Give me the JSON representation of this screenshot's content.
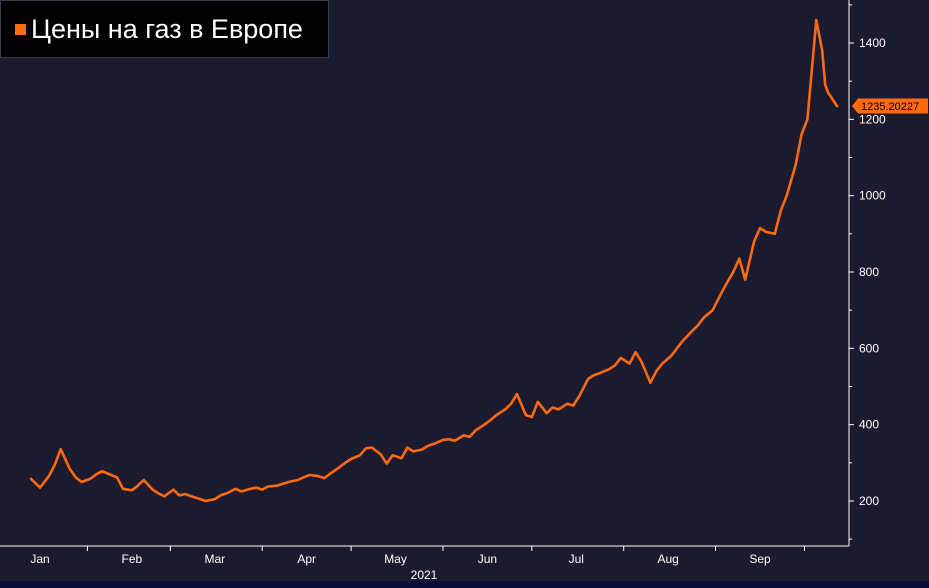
{
  "title": "Цены на газ в Европе",
  "colors": {
    "background": "#1b1a2e",
    "line": "#ff6a10",
    "title_box": "#000000",
    "text": "#ffffff",
    "axis": "#ffffff"
  },
  "chart_data": {
    "type": "line",
    "title": "Цены на газ в Европе",
    "year_label": "2021",
    "x_tick_labels": [
      "Jan",
      "Feb",
      "Mar",
      "Apr",
      "May",
      "Jun",
      "Jul",
      "Aug",
      "Sep"
    ],
    "y_ticks": [
      200,
      400,
      600,
      800,
      1000,
      1200,
      1400
    ],
    "ylim": [
      90,
      1520
    ],
    "y_axis_side": "right",
    "grid": false,
    "last_value_label": "1235.20227",
    "series": [
      {
        "x": [
          "2020-12-29",
          "2021-01-01",
          "2021-01-04",
          "2021-01-06",
          "2021-01-08",
          "2021-01-11",
          "2021-01-13",
          "2021-01-15",
          "2021-01-18",
          "2021-01-20",
          "2021-01-22",
          "2021-01-25",
          "2021-01-27",
          "2021-01-29",
          "2021-02-01",
          "2021-02-03",
          "2021-02-05",
          "2021-02-08",
          "2021-02-10",
          "2021-02-12",
          "2021-02-15",
          "2021-02-17",
          "2021-02-19",
          "2021-02-22",
          "2021-02-24",
          "2021-02-26",
          "2021-03-01",
          "2021-03-03",
          "2021-03-05",
          "2021-03-08",
          "2021-03-10",
          "2021-03-12",
          "2021-03-15",
          "2021-03-17",
          "2021-03-19",
          "2021-03-22",
          "2021-03-24",
          "2021-03-26",
          "2021-03-29",
          "2021-03-31",
          "2021-04-02",
          "2021-04-05",
          "2021-04-07",
          "2021-04-09",
          "2021-04-12",
          "2021-04-14",
          "2021-04-16",
          "2021-04-19",
          "2021-04-21",
          "2021-04-23",
          "2021-04-26",
          "2021-04-28",
          "2021-04-30",
          "2021-05-03",
          "2021-05-05",
          "2021-05-07",
          "2021-05-10",
          "2021-05-12",
          "2021-05-14",
          "2021-05-17",
          "2021-05-19",
          "2021-05-21",
          "2021-05-24",
          "2021-05-26",
          "2021-05-28",
          "2021-05-31",
          "2021-06-02",
          "2021-06-04",
          "2021-06-07",
          "2021-06-09",
          "2021-06-11",
          "2021-06-14",
          "2021-06-16",
          "2021-06-18",
          "2021-06-21",
          "2021-06-23",
          "2021-06-25",
          "2021-06-28",
          "2021-06-30",
          "2021-07-02",
          "2021-07-05",
          "2021-07-07",
          "2021-07-09",
          "2021-07-12",
          "2021-07-14",
          "2021-07-16",
          "2021-07-19",
          "2021-07-21",
          "2021-07-23",
          "2021-07-26",
          "2021-07-28",
          "2021-07-30",
          "2021-08-02",
          "2021-08-04",
          "2021-08-06",
          "2021-08-09",
          "2021-08-11",
          "2021-08-13",
          "2021-08-16",
          "2021-08-18",
          "2021-08-20",
          "2021-08-23",
          "2021-08-25",
          "2021-08-27",
          "2021-08-30",
          "2021-09-01",
          "2021-09-03",
          "2021-09-06",
          "2021-09-08",
          "2021-09-10",
          "2021-09-13",
          "2021-09-15",
          "2021-09-17",
          "2021-09-20",
          "2021-09-22",
          "2021-09-23",
          "2021-09-24",
          "2021-09-27"
        ],
        "values": [
          258,
          235,
          265,
          295,
          336,
          285,
          262,
          250,
          258,
          270,
          278,
          268,
          262,
          232,
          228,
          240,
          255,
          230,
          220,
          212,
          230,
          215,
          218,
          210,
          205,
          200,
          205,
          215,
          220,
          232,
          225,
          230,
          235,
          230,
          238,
          240,
          245,
          250,
          255,
          262,
          268,
          265,
          260,
          272,
          288,
          300,
          310,
          320,
          338,
          340,
          322,
          298,
          320,
          312,
          340,
          330,
          335,
          345,
          350,
          360,
          362,
          358,
          372,
          368,
          385,
          400,
          412,
          425,
          440,
          455,
          480,
          425,
          420,
          460,
          430,
          445,
          440,
          455,
          450,
          475,
          520,
          530,
          535,
          545,
          555,
          575,
          560,
          590,
          565,
          510,
          540,
          560,
          580,
          600,
          620,
          645,
          660,
          680,
          700,
          730,
          760,
          800,
          835,
          780,
          880,
          915,
          905,
          900,
          960,
          1000,
          1080,
          1160,
          1200,
          1460,
          1380,
          1290,
          1270,
          1235
        ]
      }
    ]
  }
}
